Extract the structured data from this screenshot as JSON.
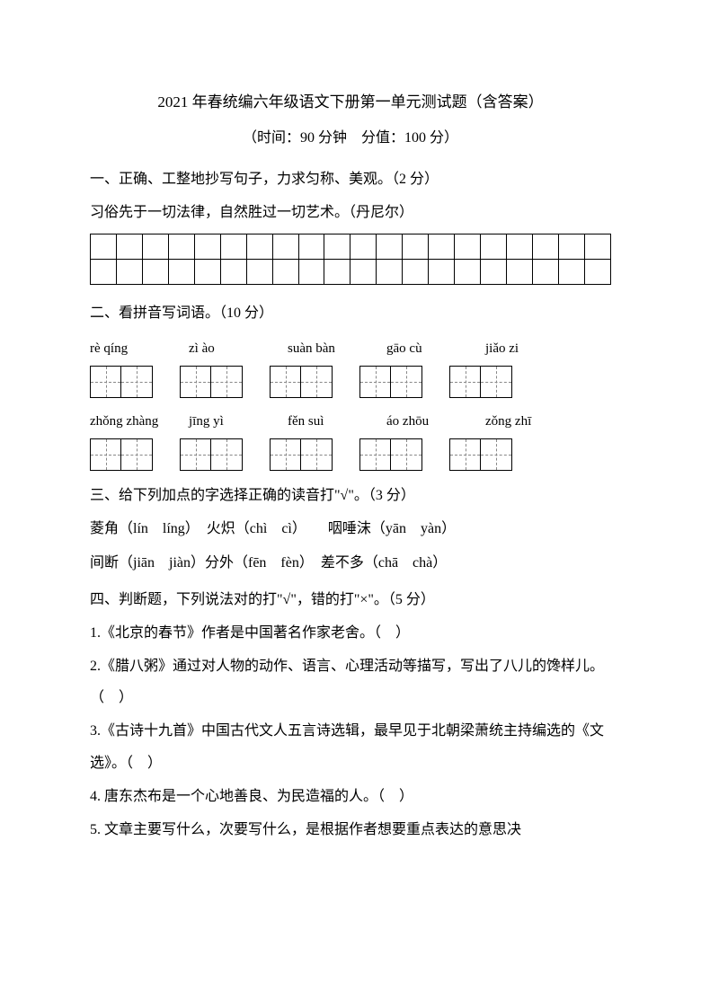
{
  "title": "2021 年春统编六年级语文下册第一单元测试题（含答案）",
  "subtitle": "（时间：90 分钟　分值：100 分）",
  "section1": {
    "heading": "一、正确、工整地抄写句子，力求匀称、美观。（2 分）",
    "sentence": "习俗先于一切法律，自然胜过一切艺术。（丹尼尔）",
    "grid_rows": 2,
    "grid_cols": 20
  },
  "section2": {
    "heading": "二、看拼音写词语。（10 分）",
    "row1_pinyin": [
      "rè qíng",
      "zì ào",
      "suàn bàn",
      "gāo cù",
      "jiǎo zi"
    ],
    "row2_pinyin": [
      "zhǒng zhàng",
      "jīng yì",
      "fěn suì",
      "áo zhōu",
      "zǒng zhī"
    ],
    "box_cells": 2
  },
  "section3": {
    "heading": "三、给下列加点的字选择正确的读音打\"√\"。（3 分）",
    "line1": "菱角（lín　líng）　火炽（chì　cì）　　咽唾沫（yān　yàn）",
    "line2": "间断（jiān　jiàn）分外（fēn　fèn）　差不多（chā　chà）"
  },
  "section4": {
    "heading": "四、判断题，下列说法对的打\"√\"，错的打\"×\"。（5 分）",
    "q1": "1.《北京的春节》作者是中国著名作家老舍。（　）",
    "q2": "2.《腊八粥》通过对人物的动作、语言、心理活动等描写，写出了八儿的馋样儿。（　）",
    "q3": "3.《古诗十九首》中国古代文人五言诗选辑，最早见于北朝梁萧统主持编选的《文选》。（　）",
    "q4": "4. 唐东杰布是一个心地善良、为民造福的人。（　）",
    "q5": "5. 文章主要写什么，次要写什么，是根据作者想要重点表达的意思决"
  }
}
